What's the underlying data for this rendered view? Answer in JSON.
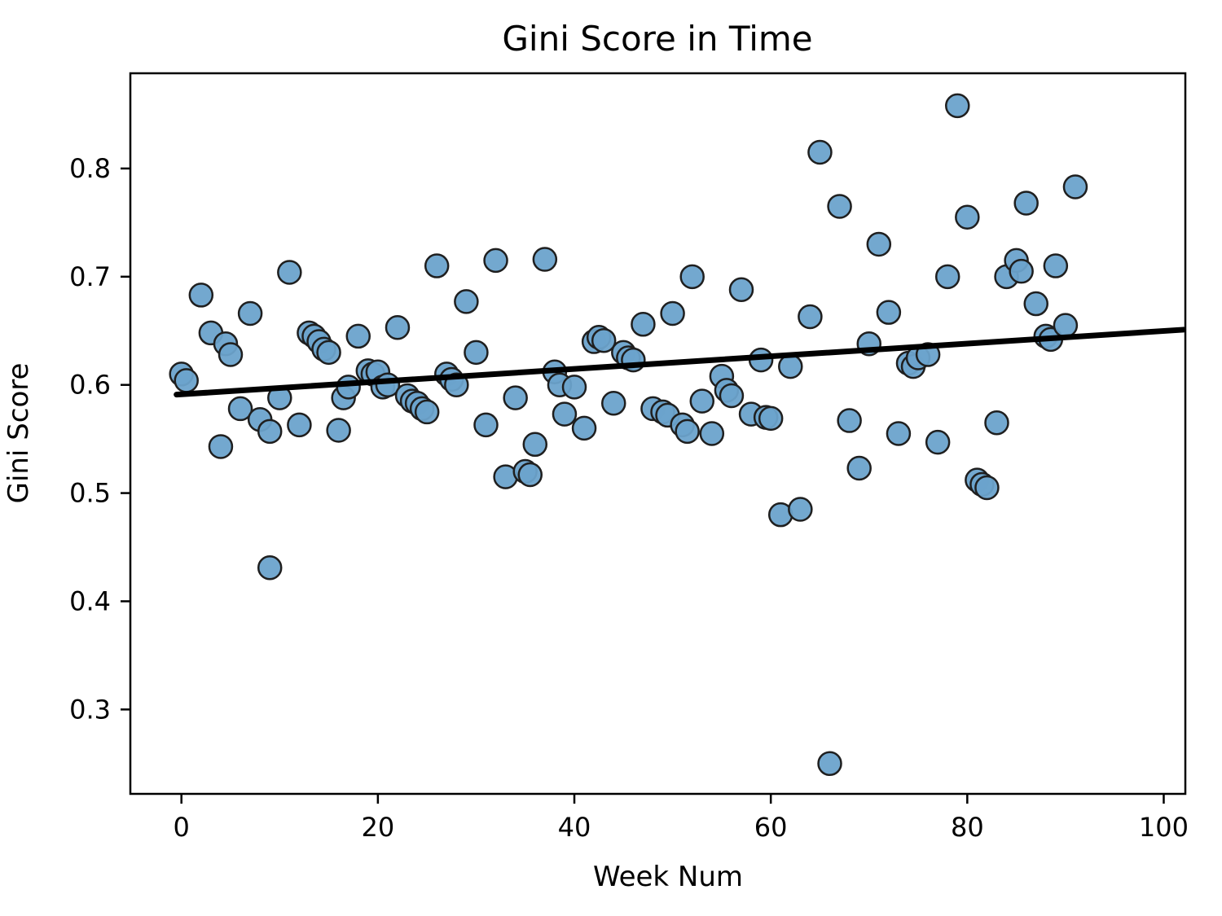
{
  "page": {
    "background": "#ffffff"
  },
  "chart_data": {
    "type": "scatter",
    "title": "Gini Score in Time",
    "xlabel": "Week Num",
    "ylabel": "Gini Score",
    "xlim": [
      -5.2,
      102.2
    ],
    "ylim": [
      0.222,
      0.888
    ],
    "x_ticks": [
      0,
      20,
      40,
      60,
      80,
      100
    ],
    "y_ticks": [
      0.3,
      0.4,
      0.5,
      0.6,
      0.7,
      0.8
    ],
    "grid": false,
    "legend_position": "none",
    "point_color": "#6ba3cc",
    "point_edge_color": "#1f1f1f",
    "trend_color": "#000000",
    "points": [
      [
        0,
        0.61
      ],
      [
        0.5,
        0.604
      ],
      [
        2,
        0.683
      ],
      [
        3,
        0.648
      ],
      [
        4,
        0.543
      ],
      [
        4.5,
        0.638
      ],
      [
        5,
        0.628
      ],
      [
        6,
        0.578
      ],
      [
        7,
        0.666
      ],
      [
        8,
        0.568
      ],
      [
        9,
        0.557
      ],
      [
        9,
        0.431
      ],
      [
        10,
        0.588
      ],
      [
        11,
        0.704
      ],
      [
        12,
        0.563
      ],
      [
        13,
        0.648
      ],
      [
        13.5,
        0.645
      ],
      [
        14,
        0.64
      ],
      [
        14.5,
        0.633
      ],
      [
        15,
        0.63
      ],
      [
        16,
        0.558
      ],
      [
        16.5,
        0.588
      ],
      [
        17,
        0.598
      ],
      [
        18,
        0.645
      ],
      [
        19,
        0.613
      ],
      [
        19.5,
        0.61
      ],
      [
        20,
        0.612
      ],
      [
        20.5,
        0.598
      ],
      [
        21,
        0.6
      ],
      [
        22,
        0.653
      ],
      [
        23,
        0.59
      ],
      [
        23.5,
        0.585
      ],
      [
        24,
        0.583
      ],
      [
        24.5,
        0.578
      ],
      [
        25,
        0.575
      ],
      [
        26,
        0.71
      ],
      [
        27,
        0.61
      ],
      [
        27.5,
        0.605
      ],
      [
        28,
        0.6
      ],
      [
        29,
        0.677
      ],
      [
        30,
        0.63
      ],
      [
        31,
        0.563
      ],
      [
        32,
        0.715
      ],
      [
        33,
        0.515
      ],
      [
        34,
        0.588
      ],
      [
        35,
        0.52
      ],
      [
        35.5,
        0.517
      ],
      [
        36,
        0.545
      ],
      [
        37,
        0.716
      ],
      [
        38,
        0.612
      ],
      [
        38.5,
        0.6
      ],
      [
        39,
        0.573
      ],
      [
        40,
        0.598
      ],
      [
        41,
        0.56
      ],
      [
        42,
        0.64
      ],
      [
        42.5,
        0.644
      ],
      [
        43,
        0.641
      ],
      [
        44,
        0.583
      ],
      [
        45,
        0.63
      ],
      [
        45.5,
        0.625
      ],
      [
        46,
        0.623
      ],
      [
        47,
        0.656
      ],
      [
        48,
        0.578
      ],
      [
        49,
        0.575
      ],
      [
        49.5,
        0.572
      ],
      [
        50,
        0.666
      ],
      [
        51,
        0.563
      ],
      [
        51.5,
        0.557
      ],
      [
        52,
        0.7
      ],
      [
        53,
        0.585
      ],
      [
        54,
        0.555
      ],
      [
        55,
        0.608
      ],
      [
        55.5,
        0.595
      ],
      [
        56,
        0.59
      ],
      [
        57,
        0.688
      ],
      [
        58,
        0.573
      ],
      [
        59,
        0.623
      ],
      [
        59.5,
        0.57
      ],
      [
        60,
        0.569
      ],
      [
        61,
        0.48
      ],
      [
        62,
        0.617
      ],
      [
        63,
        0.485
      ],
      [
        64,
        0.663
      ],
      [
        65,
        0.815
      ],
      [
        66,
        0.25
      ],
      [
        67,
        0.765
      ],
      [
        68,
        0.567
      ],
      [
        69,
        0.523
      ],
      [
        70,
        0.638
      ],
      [
        71,
        0.73
      ],
      [
        72,
        0.667
      ],
      [
        73,
        0.555
      ],
      [
        74,
        0.62
      ],
      [
        74.5,
        0.617
      ],
      [
        75,
        0.625
      ],
      [
        76,
        0.628
      ],
      [
        77,
        0.547
      ],
      [
        78,
        0.7
      ],
      [
        79,
        0.858
      ],
      [
        80,
        0.755
      ],
      [
        81,
        0.512
      ],
      [
        81.5,
        0.508
      ],
      [
        82,
        0.505
      ],
      [
        83,
        0.565
      ],
      [
        84,
        0.7
      ],
      [
        85,
        0.715
      ],
      [
        85.5,
        0.705
      ],
      [
        86,
        0.768
      ],
      [
        87,
        0.675
      ],
      [
        88,
        0.645
      ],
      [
        88.5,
        0.642
      ],
      [
        89,
        0.71
      ],
      [
        90,
        0.655
      ],
      [
        91,
        0.783
      ]
    ],
    "trend_line": {
      "x": [
        -0.5,
        102.0
      ],
      "y": [
        0.591,
        0.651
      ]
    }
  }
}
